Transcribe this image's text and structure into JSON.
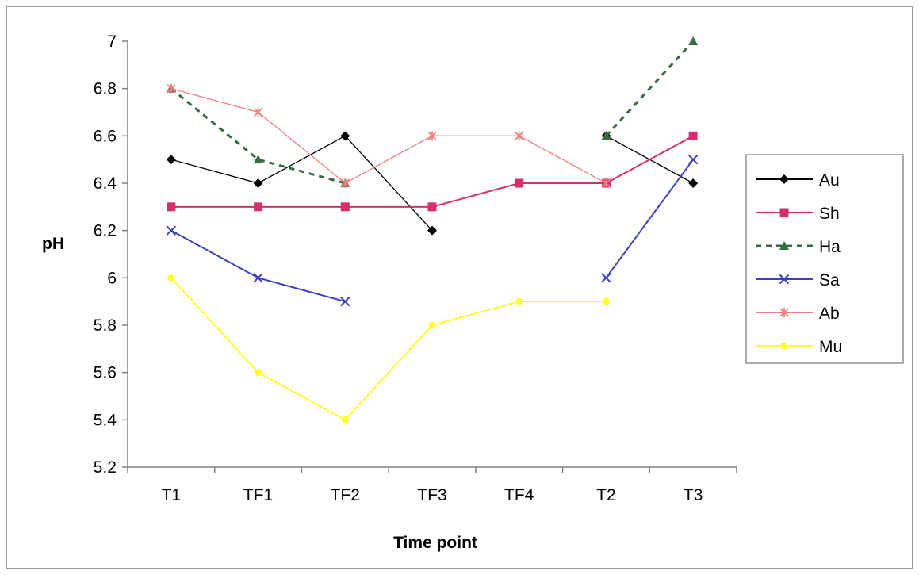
{
  "chart_data": {
    "type": "line",
    "title": "",
    "xlabel": "Time point",
    "ylabel": "pH",
    "categories": [
      "T1",
      "TF1",
      "TF2",
      "TF3",
      "TF4",
      "T2",
      "T3"
    ],
    "ylim": [
      5.2,
      7
    ],
    "yticks": [
      "5.2",
      "5.4",
      "5.6",
      "5.8",
      "6",
      "6.2",
      "6.4",
      "6.6",
      "6.8",
      "7"
    ],
    "grid": false,
    "legend_position": "right",
    "series": [
      {
        "name": "Au",
        "color": "#000000",
        "marker": "diamond",
        "dash": "solid",
        "values": [
          6.5,
          6.4,
          6.6,
          6.2,
          null,
          6.6,
          6.4
        ]
      },
      {
        "name": "Sh",
        "color": "#d62f6e",
        "marker": "square",
        "dash": "solid",
        "values": [
          6.3,
          6.3,
          6.3,
          6.3,
          6.4,
          6.4,
          6.6
        ]
      },
      {
        "name": "Ha",
        "color": "#3a6b45",
        "marker": "triangle",
        "dash": "dashed",
        "values": [
          6.8,
          6.5,
          6.4,
          null,
          null,
          6.6,
          7.0
        ]
      },
      {
        "name": "Sa",
        "color": "#3d3fbf",
        "marker": "x",
        "dash": "solid",
        "values": [
          6.2,
          6.0,
          5.9,
          null,
          null,
          6.0,
          6.5
        ]
      },
      {
        "name": "Ab",
        "color": "#f08080",
        "marker": "star",
        "dash": "solid",
        "values": [
          6.8,
          6.7,
          6.4,
          6.6,
          6.6,
          6.4,
          null
        ]
      },
      {
        "name": "Mu",
        "color": "#ffff33",
        "marker": "circle",
        "dash": "solid",
        "values": [
          6.0,
          5.6,
          5.4,
          5.8,
          5.9,
          5.9,
          null
        ]
      }
    ]
  }
}
